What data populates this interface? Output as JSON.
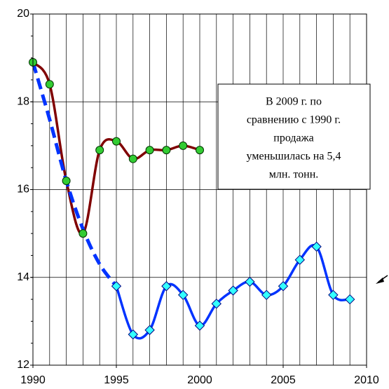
{
  "chart_data": {
    "type": "line",
    "xlim": [
      1990,
      2010
    ],
    "xticks": [
      1990,
      1995,
      2000,
      2005,
      2010
    ],
    "x_grid_step": 1,
    "ylim": [
      12,
      20
    ],
    "yticks": [
      12,
      14,
      16,
      18,
      20
    ],
    "grid": true,
    "series": [
      {
        "color": "#800000",
        "marker": "circle",
        "marker_color": "#33cc33",
        "x": [
          1990,
          1991,
          1992,
          1993,
          1994,
          1995,
          1996,
          1997,
          1998,
          1999,
          2000
        ],
        "values": [
          18.9,
          18.4,
          16.2,
          15.0,
          16.9,
          17.1,
          16.7,
          16.9,
          16.9,
          17.0,
          16.9
        ]
      },
      {
        "color": "#0033ff",
        "marker": "none",
        "dashed": true,
        "x": [
          1990,
          1991,
          1992,
          1993,
          1994,
          1995
        ],
        "values": [
          18.9,
          17.6,
          16.2,
          15.1,
          14.3,
          13.8
        ]
      },
      {
        "color": "#0033ff",
        "marker": "diamond",
        "marker_color": "#33ffff",
        "x": [
          1995,
          1996,
          1997,
          1998,
          1999,
          2000,
          2001,
          2002,
          2003,
          2004,
          2005,
          2006,
          2007,
          2008,
          2009
        ],
        "values": [
          13.8,
          12.7,
          12.8,
          13.8,
          13.6,
          12.9,
          13.4,
          13.7,
          13.9,
          13.6,
          13.8,
          14.4,
          14.7,
          13.6,
          13.5
        ]
      }
    ],
    "annotation": [
      "В 2009 г. по",
      "сравнению с 1990 г.",
      "продажа",
      "уменьшилась на 5,4",
      "млн. тонн."
    ]
  }
}
